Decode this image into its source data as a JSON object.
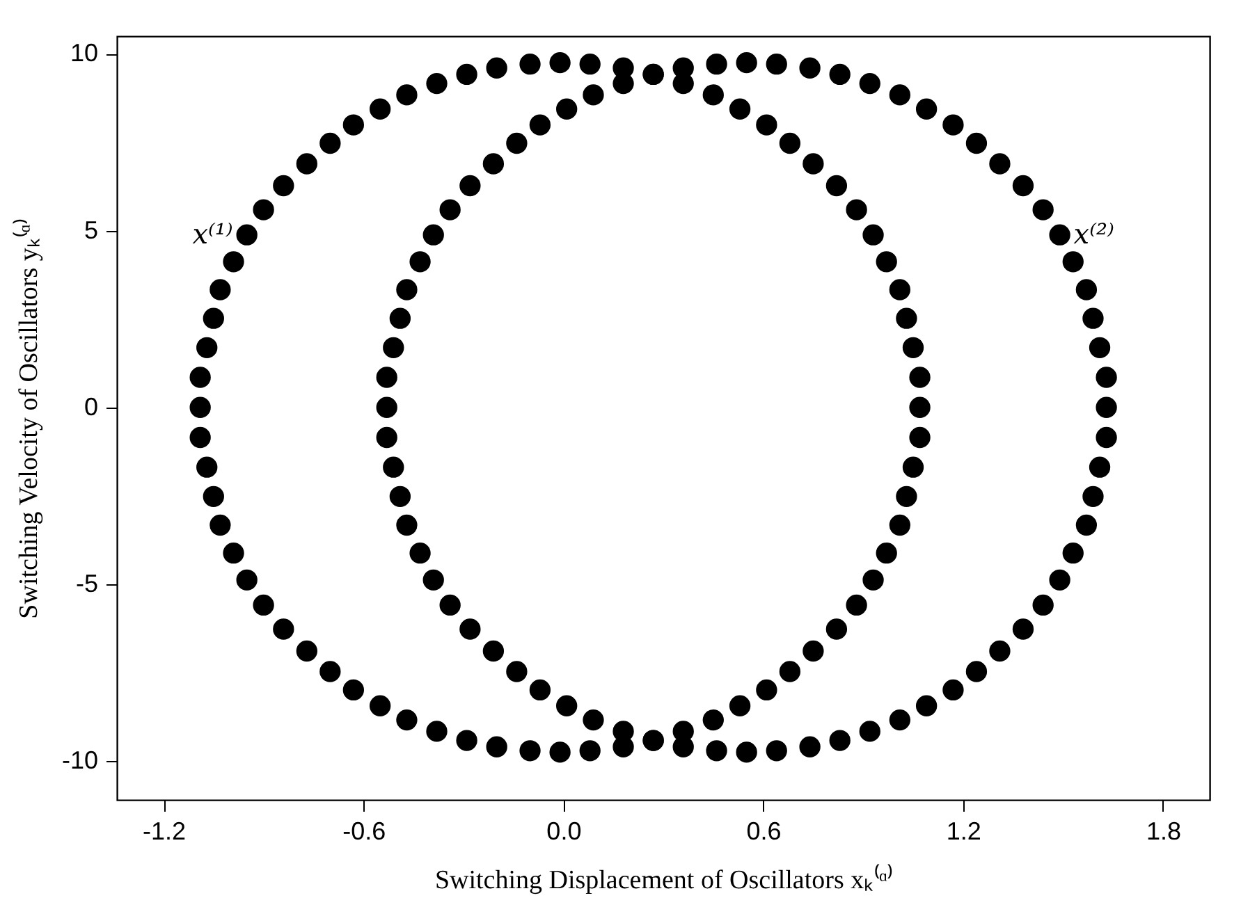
{
  "chart_data": {
    "type": "scatter",
    "xlabel": "Switching Displacement of Oscillators xₖ⁽ᵅ⁾",
    "ylabel": "Switching Velocity of Oscillators yₖ⁽ᵅ⁾",
    "xlim": [
      -1.34,
      1.94
    ],
    "ylim": [
      -11.1,
      10.5
    ],
    "xticks": [
      {
        "value": -1.2,
        "label": "-1.2"
      },
      {
        "value": -0.6,
        "label": "-0.6"
      },
      {
        "value": 0,
        "label": "0.0"
      },
      {
        "value": 0.6,
        "label": "0.6"
      },
      {
        "value": 1.2,
        "label": "1.2"
      },
      {
        "value": 1.8,
        "label": "1.8"
      }
    ],
    "yticks": [
      -10,
      -5,
      0,
      5,
      10
    ],
    "grid": false,
    "marker": "circle",
    "series": [
      {
        "name": "x⁽¹⁾",
        "color": "#000000",
        "x": [
          1.07,
          1.07,
          1.05,
          1.03,
          1.01,
          0.97,
          0.93,
          0.88,
          0.82,
          0.75,
          0.68,
          0.61,
          0.53,
          0.45,
          0.36,
          0.27,
          0.18,
          0.08,
          -0.01,
          -0.1,
          -0.2,
          -0.29,
          -0.38,
          -0.47,
          -0.55,
          -0.63,
          -0.7,
          -0.77,
          -0.84,
          -0.9,
          -0.95,
          -0.99,
          -1.03,
          -1.05,
          -1.07,
          -1.09,
          -1.09,
          -1.09,
          -1.07,
          -1.05,
          -1.03,
          -0.99,
          -0.95,
          -0.9,
          -0.84,
          -0.77,
          -0.7,
          -0.63,
          -0.55,
          -0.47,
          -0.38,
          -0.29,
          -0.2,
          -0.1,
          -0.01,
          0.08,
          0.18,
          0.27,
          0.36,
          0.45,
          0.53,
          0.61,
          0.68,
          0.75,
          0.82,
          0.88,
          0.93,
          0.97,
          1.01,
          1.03,
          1.05,
          1.07
        ],
        "values": [
          0,
          0.85,
          1.69,
          2.52,
          3.33,
          4.12,
          4.88,
          5.59,
          6.27,
          6.89,
          7.47,
          7.99,
          8.44,
          8.84,
          9.16,
          9.42,
          9.6,
          9.71,
          9.75,
          9.71,
          9.6,
          9.42,
          9.16,
          8.84,
          8.44,
          7.99,
          7.47,
          6.89,
          6.27,
          5.59,
          4.88,
          4.12,
          3.33,
          2.52,
          1.69,
          0.85,
          0,
          -0.85,
          -1.69,
          -2.52,
          -3.33,
          -4.12,
          -4.88,
          -5.59,
          -6.27,
          -6.89,
          -7.47,
          -7.99,
          -8.44,
          -8.84,
          -9.16,
          -9.42,
          -9.6,
          -9.71,
          -9.75,
          -9.71,
          -9.6,
          -9.42,
          -9.16,
          -8.84,
          -8.44,
          -7.99,
          -7.47,
          -6.89,
          -6.27,
          -5.59,
          -4.88,
          -4.12,
          -3.33,
          -2.52,
          -1.69,
          -0.85
        ]
      },
      {
        "name": "x⁽²⁾",
        "color": "#000000",
        "x": [
          1.63,
          1.63,
          1.61,
          1.59,
          1.57,
          1.53,
          1.49,
          1.44,
          1.38,
          1.31,
          1.24,
          1.17,
          1.09,
          1.01,
          0.92,
          0.83,
          0.74,
          0.64,
          0.55,
          0.46,
          0.36,
          0.27,
          0.18,
          0.09,
          0.01,
          -0.07,
          -0.14,
          -0.21,
          -0.28,
          -0.34,
          -0.39,
          -0.43,
          -0.47,
          -0.49,
          -0.51,
          -0.53,
          -0.53,
          -0.53,
          -0.51,
          -0.49,
          -0.47,
          -0.43,
          -0.39,
          -0.34,
          -0.28,
          -0.21,
          -0.14,
          -0.07,
          0.01,
          0.09,
          0.18,
          0.27,
          0.36,
          0.46,
          0.55,
          0.64,
          0.74,
          0.83,
          0.92,
          1.01,
          1.09,
          1.17,
          1.24,
          1.31,
          1.38,
          1.44,
          1.49,
          1.53,
          1.57,
          1.59,
          1.61,
          1.63
        ],
        "values": [
          0,
          0.85,
          1.69,
          2.52,
          3.33,
          4.12,
          4.88,
          5.59,
          6.27,
          6.89,
          7.47,
          7.99,
          8.44,
          8.84,
          9.16,
          9.42,
          9.6,
          9.71,
          9.75,
          9.71,
          9.6,
          9.42,
          9.16,
          8.84,
          8.44,
          7.99,
          7.47,
          6.89,
          6.27,
          5.59,
          4.88,
          4.12,
          3.33,
          2.52,
          1.69,
          0.85,
          0,
          -0.85,
          -1.69,
          -2.52,
          -3.33,
          -4.12,
          -4.88,
          -5.59,
          -6.27,
          -6.89,
          -7.47,
          -7.99,
          -8.44,
          -8.84,
          -9.16,
          -9.42,
          -9.6,
          -9.71,
          -9.75,
          -9.71,
          -9.6,
          -9.42,
          -9.16,
          -8.84,
          -8.44,
          -7.99,
          -7.47,
          -6.89,
          -6.27,
          -5.59,
          -4.88,
          -4.12,
          -3.33,
          -2.52,
          -1.69,
          -0.85
        ]
      }
    ]
  }
}
